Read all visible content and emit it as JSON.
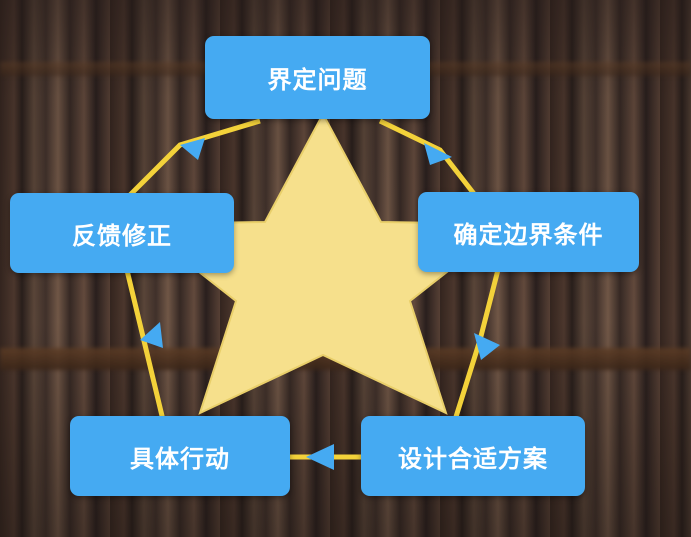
{
  "diagram": {
    "nodes": [
      {
        "id": "define-problem",
        "label": "界定问题"
      },
      {
        "id": "boundary-conditions",
        "label": "确定边界条件"
      },
      {
        "id": "design-solution",
        "label": "设计合适方案"
      },
      {
        "id": "take-action",
        "label": "具体行动"
      },
      {
        "id": "feedback-correction",
        "label": "反馈修正"
      }
    ],
    "flow": [
      "界定问题",
      "确定边界条件",
      "设计合适方案",
      "具体行动",
      "反馈修正",
      "界定问题"
    ]
  },
  "colors": {
    "node_fill": "#45aaf2",
    "node_text": "#ffffff",
    "star_fill": "#f6e08c",
    "connector": "#f3d23a",
    "arrow": "#45aaf2"
  }
}
